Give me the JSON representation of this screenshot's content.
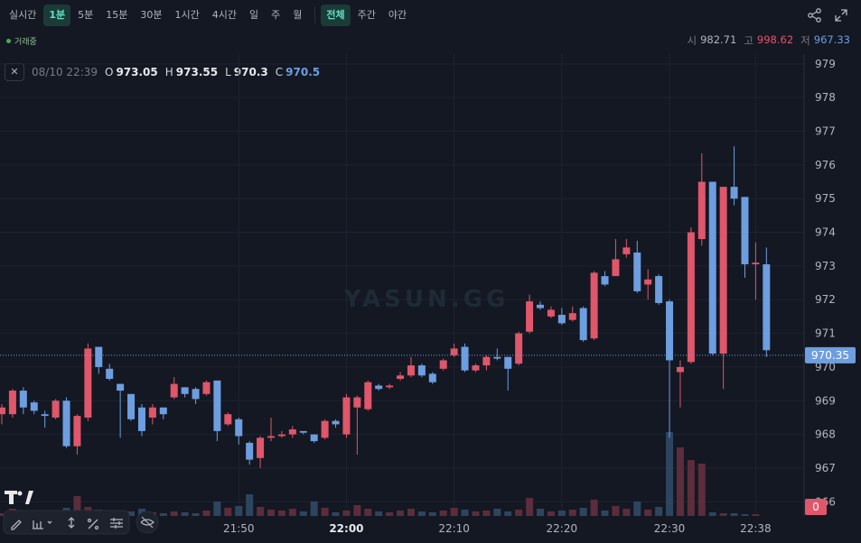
{
  "toolbar": {
    "intervals": [
      {
        "label": "실시간",
        "active": false
      },
      {
        "label": "1분",
        "active": true
      },
      {
        "label": "5분",
        "active": false
      },
      {
        "label": "15분",
        "active": false
      },
      {
        "label": "30분",
        "active": false
      },
      {
        "label": "1시간",
        "active": false
      },
      {
        "label": "4시간",
        "active": false
      },
      {
        "label": "일",
        "active": false
      },
      {
        "label": "주",
        "active": false
      },
      {
        "label": "월",
        "active": false
      }
    ],
    "sessions": [
      {
        "label": "전체",
        "active": true
      },
      {
        "label": "주간",
        "active": false
      },
      {
        "label": "야간",
        "active": false
      }
    ]
  },
  "status": "거래중",
  "day_stats": [
    {
      "label": "시",
      "value": 982.71,
      "color": "#b2b5be"
    },
    {
      "label": "고",
      "value": 998.62,
      "color": "#e0566a"
    },
    {
      "label": "저",
      "value": 967.33,
      "color": "#6d9ee0"
    }
  ],
  "chart_data": {
    "type": "candlestick",
    "watermark": "YASUN.GG",
    "date": "08/10 22:39",
    "legend_labels": [
      "O",
      "H",
      "L",
      "C"
    ],
    "up_color": "#e0566a",
    "down_color": "#6d9ee0",
    "up_volume_color": "#5c2d3c",
    "down_volume_color": "#2e4560",
    "categories": [
      null,
      null,
      null,
      null,
      null,
      null,
      null,
      null,
      null,
      null,
      null,
      null,
      null,
      null,
      null,
      null,
      null,
      null,
      null,
      null,
      null,
      null,
      "21:50",
      null,
      null,
      null,
      null,
      null,
      null,
      null,
      null,
      null,
      "22:00",
      null,
      null,
      null,
      null,
      null,
      null,
      null,
      null,
      null,
      "22:10",
      null,
      null,
      null,
      null,
      null,
      null,
      null,
      null,
      null,
      "22:20",
      null,
      null,
      null,
      null,
      null,
      null,
      null,
      null,
      null,
      "22:30",
      null,
      null,
      null,
      null,
      null,
      null,
      null,
      "22:38",
      null
    ],
    "open": [
      968.6,
      968.6,
      969.3,
      968.95,
      968.6,
      968.5,
      969.0,
      967.65,
      968.5,
      970.6,
      969.95,
      969.5,
      969.2,
      968.8,
      968.5,
      968.8,
      969.1,
      969.4,
      969.35,
      969.2,
      969.6,
      968.3,
      968.45,
      967.75,
      967.3,
      967.9,
      967.95,
      968.0,
      968.1,
      968.0,
      967.9,
      968.4,
      968.0,
      968.8,
      968.75,
      969.45,
      969.4,
      969.65,
      969.75,
      970.05,
      969.8,
      969.95,
      970.35,
      970.6,
      969.9,
      970.05,
      970.3,
      970.3,
      970.1,
      971.05,
      971.85,
      971.5,
      971.55,
      971.4,
      971.75,
      970.85,
      972.7,
      972.7,
      973.35,
      973.4,
      972.45,
      972.7,
      971.95,
      969.85,
      970.15,
      973.8,
      975.5,
      970.4,
      975.35,
      975.05,
      973.05,
      973.05
    ],
    "high": [
      968.9,
      969.35,
      969.4,
      969.0,
      968.7,
      969.05,
      969.1,
      968.6,
      970.7,
      970.6,
      970.1,
      969.5,
      969.2,
      968.9,
      968.9,
      968.8,
      969.7,
      969.4,
      969.4,
      969.6,
      969.6,
      968.65,
      968.5,
      967.8,
      967.95,
      968.5,
      968.1,
      968.25,
      968.1,
      968.0,
      968.45,
      968.45,
      969.2,
      969.15,
      969.6,
      969.5,
      969.5,
      969.85,
      970.3,
      970.1,
      969.85,
      970.25,
      970.7,
      970.7,
      970.1,
      970.35,
      970.55,
      970.3,
      971.05,
      972.15,
      971.95,
      971.8,
      971.75,
      971.8,
      971.8,
      972.85,
      972.85,
      973.8,
      973.8,
      973.75,
      972.9,
      972.75,
      972.0,
      970.2,
      974.15,
      976.35,
      975.5,
      975.35,
      976.55,
      975.05,
      973.7,
      973.55
    ],
    "low": [
      968.3,
      968.5,
      968.6,
      968.6,
      968.2,
      968.45,
      967.6,
      967.4,
      968.4,
      969.8,
      969.6,
      967.9,
      968.4,
      967.95,
      968.3,
      968.45,
      969.05,
      969.1,
      968.9,
      969.15,
      967.8,
      968.25,
      967.7,
      967.1,
      967.0,
      967.8,
      967.9,
      967.9,
      968.0,
      967.75,
      967.85,
      968.2,
      967.9,
      967.4,
      968.7,
      969.3,
      969.35,
      969.6,
      969.7,
      969.7,
      969.5,
      969.9,
      970.3,
      969.85,
      969.85,
      969.9,
      970.2,
      969.3,
      970.05,
      971.0,
      971.7,
      971.45,
      971.25,
      971.35,
      970.75,
      970.8,
      972.4,
      972.7,
      973.25,
      972.2,
      972.0,
      971.85,
      967.9,
      968.8,
      970.1,
      973.6,
      970.35,
      969.35,
      974.8,
      972.65,
      972.0,
      970.3
    ],
    "close": [
      968.8,
      969.3,
      968.8,
      968.7,
      968.55,
      969.0,
      967.65,
      968.55,
      970.55,
      970.0,
      969.65,
      969.3,
      968.45,
      968.1,
      968.8,
      968.6,
      969.5,
      969.2,
      969.05,
      969.55,
      968.1,
      968.6,
      967.95,
      967.25,
      967.9,
      967.95,
      968.0,
      968.15,
      968.05,
      967.8,
      968.4,
      968.3,
      969.1,
      969.1,
      969.55,
      969.35,
      969.45,
      969.75,
      970.05,
      969.75,
      969.55,
      970.2,
      970.55,
      969.9,
      970.05,
      970.3,
      970.25,
      969.95,
      971.0,
      971.95,
      971.75,
      971.7,
      971.3,
      971.6,
      970.8,
      972.8,
      972.45,
      973.2,
      973.55,
      972.25,
      972.6,
      971.9,
      970.2,
      970.0,
      974.0,
      975.5,
      970.4,
      975.35,
      975.0,
      973.05,
      973.1,
      970.5
    ],
    "volume": [
      3,
      8,
      5,
      4,
      3,
      6,
      9,
      22,
      10,
      7,
      4,
      6,
      5,
      8,
      4,
      3,
      5,
      4,
      3,
      6,
      16,
      9,
      11,
      24,
      10,
      7,
      6,
      8,
      5,
      16,
      9,
      4,
      6,
      12,
      8,
      5,
      4,
      6,
      8,
      5,
      4,
      6,
      9,
      7,
      5,
      6,
      8,
      5,
      7,
      20,
      8,
      5,
      6,
      7,
      9,
      18,
      6,
      11,
      8,
      16,
      7,
      10,
      93,
      76,
      62,
      58,
      4,
      3,
      3,
      2,
      2,
      0
    ],
    "volume_ylim": [
      0,
      100
    ],
    "last_price": 970.35,
    "ylim": [
      965.58,
      979.29
    ],
    "yticks": [
      966,
      967,
      968,
      969,
      970,
      971,
      972,
      973,
      974,
      975,
      976,
      977,
      978,
      979
    ],
    "grid": true
  }
}
